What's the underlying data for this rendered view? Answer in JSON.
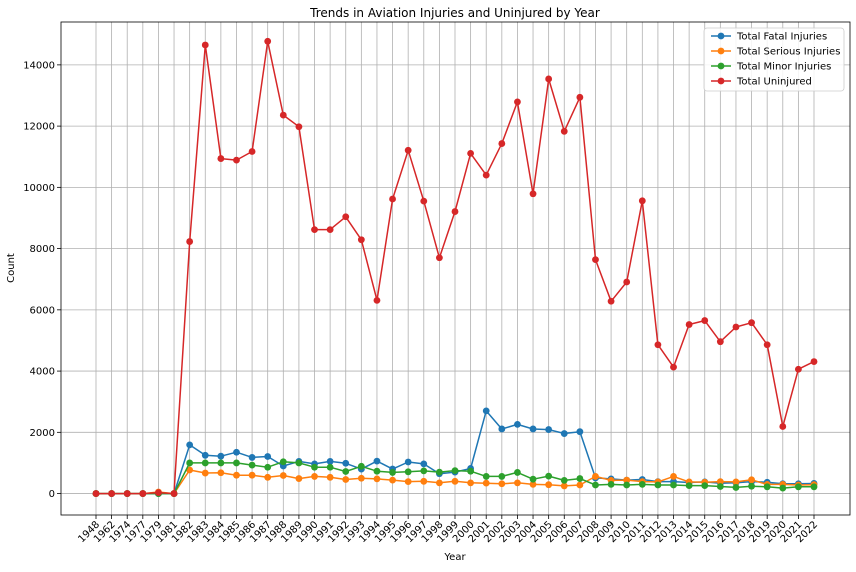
{
  "chart_data": {
    "type": "line",
    "title": "Trends in Aviation Injuries and Uninjured by Year",
    "xlabel": "Year",
    "ylabel": "Count",
    "categories": [
      "1948",
      "1962",
      "1974",
      "1977",
      "1979",
      "1981",
      "1982",
      "1983",
      "1984",
      "1985",
      "1986",
      "1987",
      "1988",
      "1989",
      "1990",
      "1991",
      "1992",
      "1993",
      "1994",
      "1995",
      "1996",
      "1997",
      "1998",
      "1999",
      "2000",
      "2001",
      "2002",
      "2003",
      "2004",
      "2005",
      "2006",
      "2007",
      "2008",
      "2009",
      "2010",
      "2011",
      "2012",
      "2013",
      "2014",
      "2015",
      "2016",
      "2017",
      "2018",
      "2019",
      "2020",
      "2021",
      "2022"
    ],
    "ylim": [
      -700,
      15400
    ],
    "yticks": [
      0,
      2000,
      4000,
      6000,
      8000,
      10000,
      12000,
      14000
    ],
    "grid": true,
    "legend_position": "top-right",
    "series": [
      {
        "name": "Total Fatal Injuries",
        "color": "#1f77b4",
        "values": [
          0,
          0,
          0,
          0,
          0,
          0,
          1590,
          1250,
          1220,
          1350,
          1180,
          1210,
          900,
          1050,
          970,
          1050,
          990,
          800,
          1060,
          800,
          1030,
          970,
          650,
          700,
          820,
          2700,
          2110,
          2260,
          2110,
          2090,
          1960,
          2020,
          510,
          480,
          440,
          460,
          390,
          390,
          360,
          380,
          340,
          350,
          390,
          370,
          320,
          320,
          330
        ]
      },
      {
        "name": "Total Serious Injuries",
        "color": "#ff7f0e",
        "values": [
          0,
          0,
          0,
          0,
          50,
          0,
          770,
          670,
          680,
          600,
          600,
          530,
          590,
          490,
          560,
          530,
          460,
          500,
          480,
          440,
          390,
          400,
          350,
          400,
          350,
          340,
          320,
          350,
          300,
          290,
          250,
          280,
          560,
          430,
          440,
          390,
          380,
          560,
          380,
          370,
          390,
          380,
          450,
          300,
          300,
          280,
          290
        ]
      },
      {
        "name": "Total Minor Injuries",
        "color": "#2ca02c",
        "values": [
          0,
          0,
          0,
          0,
          0,
          0,
          1000,
          1000,
          1000,
          1000,
          930,
          860,
          1040,
          1000,
          860,
          860,
          720,
          890,
          730,
          690,
          710,
          740,
          700,
          750,
          730,
          560,
          560,
          690,
          470,
          570,
          430,
          490,
          280,
          300,
          280,
          300,
          280,
          280,
          260,
          260,
          230,
          200,
          240,
          220,
          180,
          220,
          220
        ]
      },
      {
        "name": "Total Uninjured",
        "color": "#d62728",
        "values": [
          0,
          0,
          0,
          0,
          30,
          0,
          8230,
          14650,
          10940,
          10890,
          11170,
          14770,
          12360,
          11980,
          8620,
          8620,
          9040,
          8290,
          6310,
          9620,
          11210,
          9550,
          7700,
          9210,
          11110,
          10400,
          11430,
          12790,
          9790,
          13540,
          11830,
          12940,
          7640,
          6280,
          6910,
          9560,
          4860,
          4130,
          5520,
          5650,
          4960,
          5440,
          5580,
          4860,
          2190,
          4060,
          4310
        ]
      }
    ]
  }
}
